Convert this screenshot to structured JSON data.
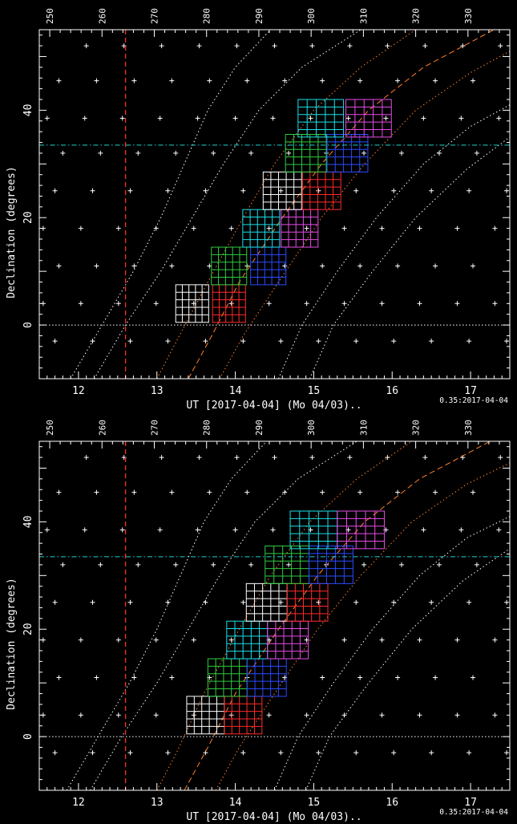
{
  "colors": {
    "background": "#000000",
    "axes": "#ffffff",
    "ut_marker": "#ff2a2a",
    "dec_marker": "#19d3d3",
    "airmass_white": "#ffffff",
    "airmass_orange": "#ff7f2a",
    "field_white": "#ffffff",
    "field_green": "#2ecc40",
    "field_blue": "#2a4bff",
    "field_red": "#ff2a2a",
    "field_cyan": "#19e0e8",
    "field_magenta": "#e64be6"
  },
  "chart_data": [
    {
      "type": "scatter",
      "xlabel": "UT [2017-04-04] (Mo 04/03)..",
      "ylabel": "Declination (degrees)",
      "stamp": "0.35:2017-04-04",
      "xlim": [
        11.5,
        17.5
      ],
      "ylim": [
        -10,
        55
      ],
      "x_ticks": [
        12,
        13,
        14,
        15,
        16,
        17
      ],
      "y_ticks": [
        0,
        20,
        40
      ],
      "top_axis": {
        "lim": [
          248,
          338
        ],
        "ticks": [
          250,
          260,
          270,
          280,
          290,
          300,
          310,
          320,
          330
        ]
      },
      "ut_marker": 12.6,
      "dec_marker": 33.5,
      "grid_points_dec": [
        -3,
        4,
        11,
        18,
        25,
        32,
        38.5,
        45.5,
        52
      ],
      "grid_points_x_start": [
        11.7,
        11.55,
        11.75,
        11.55,
        11.7,
        11.8,
        11.6,
        11.75,
        12.1
      ],
      "grid_points_dx": 0.48,
      "airmass_curves": [
        {
          "color": "white",
          "style": "dotted",
          "points": [
            [
              11.9,
              -10
            ],
            [
              12.3,
              0
            ],
            [
              12.7,
              10
            ],
            [
              13.05,
              20
            ],
            [
              13.35,
              30
            ],
            [
              13.65,
              40
            ],
            [
              14.0,
              48
            ],
            [
              14.45,
              55
            ]
          ]
        },
        {
          "color": "white",
          "style": "dotted",
          "points": [
            [
              12.2,
              -10
            ],
            [
              12.6,
              0
            ],
            [
              13.05,
              10
            ],
            [
              13.45,
              20
            ],
            [
              13.85,
              30
            ],
            [
              14.3,
              40
            ],
            [
              14.85,
              48
            ],
            [
              15.6,
              55
            ]
          ]
        },
        {
          "color": "orange",
          "style": "dotted",
          "points": [
            [
              13.0,
              -10
            ],
            [
              13.25,
              -3
            ],
            [
              13.65,
              8
            ],
            [
              14.1,
              20
            ],
            [
              14.5,
              30
            ],
            [
              15.0,
              40
            ],
            [
              15.6,
              48
            ],
            [
              16.3,
              55
            ]
          ]
        },
        {
          "color": "orange",
          "style": "dashed",
          "points": [
            [
              13.4,
              -10
            ],
            [
              13.7,
              -2
            ],
            [
              14.05,
              8
            ],
            [
              14.6,
              20
            ],
            [
              15.1,
              30
            ],
            [
              15.7,
              40
            ],
            [
              16.4,
              48
            ],
            [
              17.3,
              55
            ]
          ]
        },
        {
          "color": "orange",
          "style": "dotted",
          "points": [
            [
              13.8,
              -10
            ],
            [
              14.1,
              -2
            ],
            [
              14.55,
              8
            ],
            [
              15.1,
              20
            ],
            [
              15.65,
              30
            ],
            [
              16.3,
              40
            ],
            [
              17.0,
              47
            ],
            [
              17.5,
              51
            ]
          ]
        },
        {
          "color": "white",
          "style": "dotted",
          "points": [
            [
              14.55,
              -10
            ],
            [
              14.85,
              0
            ],
            [
              15.3,
              10
            ],
            [
              15.8,
              20
            ],
            [
              16.4,
              30
            ],
            [
              17.0,
              37
            ],
            [
              17.5,
              41
            ]
          ]
        },
        {
          "color": "white",
          "style": "dotted",
          "points": [
            [
              14.95,
              -10
            ],
            [
              15.25,
              0
            ],
            [
              15.75,
              10
            ],
            [
              16.3,
              20
            ],
            [
              16.95,
              29
            ],
            [
              17.5,
              35
            ]
          ]
        }
      ],
      "fields": [
        {
          "color": "white",
          "ut": 13.45,
          "dec": 4,
          "w": 0.42
        },
        {
          "color": "red",
          "ut": 13.92,
          "dec": 4,
          "w": 0.42
        },
        {
          "color": "green",
          "ut": 13.92,
          "dec": 11,
          "w": 0.45
        },
        {
          "color": "blue",
          "ut": 14.42,
          "dec": 11,
          "w": 0.45
        },
        {
          "color": "cyan",
          "ut": 14.33,
          "dec": 18,
          "w": 0.47
        },
        {
          "color": "magenta",
          "ut": 14.82,
          "dec": 18,
          "w": 0.47
        },
        {
          "color": "white",
          "ut": 14.6,
          "dec": 25,
          "w": 0.49
        },
        {
          "color": "red",
          "ut": 15.1,
          "dec": 25,
          "w": 0.49
        },
        {
          "color": "green",
          "ut": 14.9,
          "dec": 32,
          "w": 0.52
        },
        {
          "color": "blue",
          "ut": 15.43,
          "dec": 32,
          "w": 0.52
        },
        {
          "color": "cyan",
          "ut": 15.09,
          "dec": 38.5,
          "w": 0.58
        },
        {
          "color": "magenta",
          "ut": 15.7,
          "dec": 38.5,
          "w": 0.58
        }
      ]
    },
    {
      "type": "scatter",
      "xlabel": "UT [2017-04-04] (Mo 04/03)..",
      "ylabel": "Declination (degrees)",
      "stamp": "0.35:2017-04-04",
      "xlim": [
        11.5,
        17.5
      ],
      "ylim": [
        -10,
        55
      ],
      "x_ticks": [
        12,
        13,
        14,
        15,
        16,
        17
      ],
      "y_ticks": [
        0,
        20,
        40
      ],
      "top_axis": {
        "lim": [
          248,
          338
        ],
        "ticks": [
          250,
          260,
          270,
          280,
          290,
          300,
          310,
          320,
          330
        ]
      },
      "ut_marker": 12.6,
      "dec_marker": 33.5,
      "grid_points_dec": [
        -3,
        4,
        11,
        18,
        25,
        32,
        38.5,
        45.5,
        52
      ],
      "grid_points_x_start": [
        11.7,
        11.55,
        11.75,
        11.55,
        11.7,
        11.8,
        11.6,
        11.75,
        12.1
      ],
      "grid_points_dx": 0.48,
      "airmass_curves": [
        {
          "color": "white",
          "style": "dotted",
          "points": [
            [
              11.85,
              -10
            ],
            [
              12.25,
              0
            ],
            [
              12.65,
              10
            ],
            [
              13.0,
              20
            ],
            [
              13.3,
              30
            ],
            [
              13.6,
              40
            ],
            [
              13.95,
              48
            ],
            [
              14.4,
              55
            ]
          ]
        },
        {
          "color": "white",
          "style": "dotted",
          "points": [
            [
              12.15,
              -10
            ],
            [
              12.55,
              0
            ],
            [
              13.0,
              10
            ],
            [
              13.4,
              20
            ],
            [
              13.8,
              30
            ],
            [
              14.25,
              40
            ],
            [
              14.8,
              48
            ],
            [
              15.55,
              55
            ]
          ]
        },
        {
          "color": "orange",
          "style": "dotted",
          "points": [
            [
              13.0,
              -10
            ],
            [
              13.25,
              -3
            ],
            [
              13.6,
              8
            ],
            [
              14.05,
              20
            ],
            [
              14.45,
              30
            ],
            [
              14.95,
              40
            ],
            [
              15.55,
              48
            ],
            [
              16.25,
              55
            ]
          ]
        },
        {
          "color": "orange",
          "style": "dashed",
          "points": [
            [
              13.35,
              -10
            ],
            [
              13.65,
              -2
            ],
            [
              14.0,
              8
            ],
            [
              14.55,
              20
            ],
            [
              15.05,
              30
            ],
            [
              15.65,
              40
            ],
            [
              16.35,
              48
            ],
            [
              17.25,
              55
            ]
          ]
        },
        {
          "color": "orange",
          "style": "dotted",
          "points": [
            [
              13.75,
              -10
            ],
            [
              14.05,
              -2
            ],
            [
              14.5,
              8
            ],
            [
              15.05,
              20
            ],
            [
              15.6,
              30
            ],
            [
              16.25,
              40
            ],
            [
              16.95,
              47
            ],
            [
              17.5,
              51
            ]
          ]
        },
        {
          "color": "white",
          "style": "dotted",
          "points": [
            [
              14.5,
              -10
            ],
            [
              14.8,
              0
            ],
            [
              15.25,
              10
            ],
            [
              15.75,
              20
            ],
            [
              16.35,
              30
            ],
            [
              16.95,
              37
            ],
            [
              17.5,
              41
            ]
          ]
        },
        {
          "color": "white",
          "style": "dotted",
          "points": [
            [
              14.9,
              -10
            ],
            [
              15.2,
              0
            ],
            [
              15.7,
              10
            ],
            [
              16.25,
              20
            ],
            [
              16.9,
              29
            ],
            [
              17.5,
              35
            ]
          ]
        }
      ],
      "fields": [
        {
          "color": "white",
          "ut": 13.62,
          "dec": 4,
          "w": 0.48
        },
        {
          "color": "red",
          "ut": 14.1,
          "dec": 4,
          "w": 0.48
        },
        {
          "color": "green",
          "ut": 13.9,
          "dec": 11,
          "w": 0.5
        },
        {
          "color": "blue",
          "ut": 14.4,
          "dec": 11,
          "w": 0.5
        },
        {
          "color": "cyan",
          "ut": 14.15,
          "dec": 18,
          "w": 0.52
        },
        {
          "color": "magenta",
          "ut": 14.67,
          "dec": 18,
          "w": 0.52
        },
        {
          "color": "white",
          "ut": 14.4,
          "dec": 25,
          "w": 0.52
        },
        {
          "color": "red",
          "ut": 14.92,
          "dec": 25,
          "w": 0.52
        },
        {
          "color": "green",
          "ut": 14.66,
          "dec": 32,
          "w": 0.56
        },
        {
          "color": "blue",
          "ut": 15.22,
          "dec": 32,
          "w": 0.56
        },
        {
          "color": "cyan",
          "ut": 15.0,
          "dec": 38.5,
          "w": 0.6
        },
        {
          "color": "magenta",
          "ut": 15.6,
          "dec": 38.5,
          "w": 0.6
        }
      ]
    }
  ]
}
